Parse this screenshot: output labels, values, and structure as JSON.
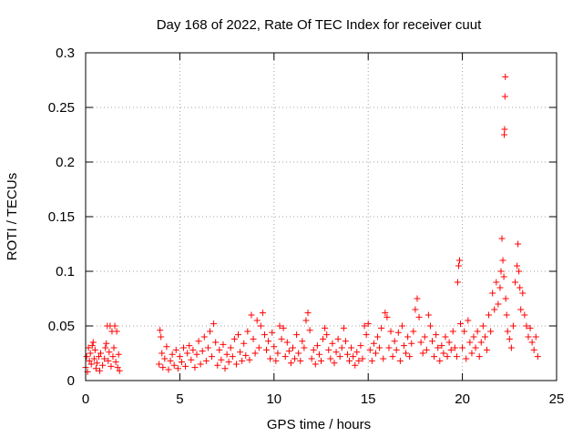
{
  "chart_data": {
    "type": "scatter",
    "title": "Day 168 of 2022, Rate Of TEC Index for receiver cuut",
    "xlabel": "GPS time / hours",
    "ylabel": "ROTI / TECUs",
    "xlim": [
      0,
      25
    ],
    "ylim": [
      0,
      0.3
    ],
    "x_ticks": [
      0,
      5,
      10,
      15,
      20,
      25
    ],
    "x_tick_labels": [
      "0",
      "5",
      "10",
      "15",
      "20",
      "25"
    ],
    "y_ticks": [
      0,
      0.05,
      0.1,
      0.15,
      0.2,
      0.25,
      0.3
    ],
    "y_tick_labels": [
      "0",
      "0.05",
      "0.1",
      "0.15",
      "0.2",
      "0.25",
      "0.3"
    ],
    "grid": true,
    "marker": "+",
    "marker_color": "#ff0000",
    "series": [
      {
        "name": "ROTI",
        "points": [
          [
            0.0,
            0.012
          ],
          [
            0.05,
            0.022
          ],
          [
            0.1,
            0.008
          ],
          [
            0.15,
            0.03
          ],
          [
            0.2,
            0.018
          ],
          [
            0.25,
            0.025
          ],
          [
            0.3,
            0.015
          ],
          [
            0.35,
            0.032
          ],
          [
            0.4,
            0.035
          ],
          [
            0.45,
            0.02
          ],
          [
            0.5,
            0.028
          ],
          [
            0.55,
            0.011
          ],
          [
            0.6,
            0.016
          ],
          [
            0.7,
            0.022
          ],
          [
            0.75,
            0.009
          ],
          [
            0.8,
            0.025
          ],
          [
            0.9,
            0.014
          ],
          [
            1.0,
            0.02
          ],
          [
            1.05,
            0.03
          ],
          [
            1.1,
            0.034
          ],
          [
            1.15,
            0.05
          ],
          [
            1.2,
            0.018
          ],
          [
            1.25,
            0.026
          ],
          [
            1.3,
            0.05
          ],
          [
            1.35,
            0.013
          ],
          [
            1.4,
            0.045
          ],
          [
            1.45,
            0.022
          ],
          [
            1.5,
            0.03
          ],
          [
            1.55,
            0.05
          ],
          [
            1.6,
            0.017
          ],
          [
            1.65,
            0.045
          ],
          [
            1.7,
            0.012
          ],
          [
            1.75,
            0.024
          ],
          [
            1.8,
            0.009
          ],
          [
            3.9,
            0.015
          ],
          [
            3.95,
            0.046
          ],
          [
            4.0,
            0.04
          ],
          [
            4.05,
            0.025
          ],
          [
            4.1,
            0.012
          ],
          [
            4.2,
            0.02
          ],
          [
            4.3,
            0.031
          ],
          [
            4.4,
            0.01
          ],
          [
            4.5,
            0.018
          ],
          [
            4.6,
            0.024
          ],
          [
            4.7,
            0.014
          ],
          [
            4.8,
            0.028
          ],
          [
            4.9,
            0.011
          ],
          [
            5.0,
            0.022
          ],
          [
            5.1,
            0.017
          ],
          [
            5.2,
            0.03
          ],
          [
            5.3,
            0.013
          ],
          [
            5.4,
            0.025
          ],
          [
            5.5,
            0.032
          ],
          [
            5.6,
            0.019
          ],
          [
            5.7,
            0.028
          ],
          [
            5.8,
            0.012
          ],
          [
            5.9,
            0.024
          ],
          [
            6.0,
            0.036
          ],
          [
            6.1,
            0.015
          ],
          [
            6.2,
            0.027
          ],
          [
            6.3,
            0.04
          ],
          [
            6.4,
            0.018
          ],
          [
            6.5,
            0.03
          ],
          [
            6.6,
            0.045
          ],
          [
            6.7,
            0.022
          ],
          [
            6.8,
            0.052
          ],
          [
            6.9,
            0.035
          ],
          [
            7.0,
            0.014
          ],
          [
            7.1,
            0.028
          ],
          [
            7.2,
            0.019
          ],
          [
            7.3,
            0.033
          ],
          [
            7.4,
            0.011
          ],
          [
            7.5,
            0.024
          ],
          [
            7.6,
            0.017
          ],
          [
            7.7,
            0.03
          ],
          [
            7.8,
            0.022
          ],
          [
            7.9,
            0.038
          ],
          [
            8.0,
            0.015
          ],
          [
            8.1,
            0.042
          ],
          [
            8.2,
            0.026
          ],
          [
            8.3,
            0.018
          ],
          [
            8.4,
            0.034
          ],
          [
            8.5,
            0.023
          ],
          [
            8.6,
            0.045
          ],
          [
            8.7,
            0.019
          ],
          [
            8.8,
            0.06
          ],
          [
            8.9,
            0.038
          ],
          [
            9.0,
            0.025
          ],
          [
            9.1,
            0.055
          ],
          [
            9.2,
            0.03
          ],
          [
            9.3,
            0.05
          ],
          [
            9.4,
            0.062
          ],
          [
            9.5,
            0.042
          ],
          [
            9.6,
            0.028
          ],
          [
            9.7,
            0.036
          ],
          [
            9.8,
            0.02
          ],
          [
            9.9,
            0.044
          ],
          [
            10.0,
            0.031
          ],
          [
            10.1,
            0.018
          ],
          [
            10.2,
            0.025
          ],
          [
            10.3,
            0.05
          ],
          [
            10.4,
            0.038
          ],
          [
            10.5,
            0.048
          ],
          [
            10.6,
            0.022
          ],
          [
            10.7,
            0.035
          ],
          [
            10.8,
            0.027
          ],
          [
            10.9,
            0.016
          ],
          [
            11.0,
            0.03
          ],
          [
            11.1,
            0.02
          ],
          [
            11.2,
            0.042
          ],
          [
            11.3,
            0.025
          ],
          [
            11.4,
            0.018
          ],
          [
            11.5,
            0.036
          ],
          [
            11.6,
            0.03
          ],
          [
            11.7,
            0.055
          ],
          [
            11.8,
            0.062
          ],
          [
            11.9,
            0.046
          ],
          [
            12.0,
            0.02
          ],
          [
            12.1,
            0.028
          ],
          [
            12.2,
            0.015
          ],
          [
            12.3,
            0.032
          ],
          [
            12.4,
            0.024
          ],
          [
            12.5,
            0.018
          ],
          [
            12.6,
            0.038
          ],
          [
            12.7,
            0.048
          ],
          [
            12.8,
            0.042
          ],
          [
            12.9,
            0.028
          ],
          [
            13.0,
            0.02
          ],
          [
            13.1,
            0.034
          ],
          [
            13.2,
            0.016
          ],
          [
            13.3,
            0.026
          ],
          [
            13.4,
            0.038
          ],
          [
            13.5,
            0.022
          ],
          [
            13.6,
            0.03
          ],
          [
            13.7,
            0.048
          ],
          [
            13.8,
            0.036
          ],
          [
            13.9,
            0.024
          ],
          [
            14.0,
            0.018
          ],
          [
            14.1,
            0.03
          ],
          [
            14.2,
            0.022
          ],
          [
            14.3,
            0.014
          ],
          [
            14.4,
            0.026
          ],
          [
            14.5,
            0.018
          ],
          [
            14.6,
            0.032
          ],
          [
            14.7,
            0.02
          ],
          [
            14.8,
            0.05
          ],
          [
            14.9,
            0.042
          ],
          [
            15.0,
            0.052
          ],
          [
            15.1,
            0.028
          ],
          [
            15.2,
            0.018
          ],
          [
            15.3,
            0.034
          ],
          [
            15.4,
            0.025
          ],
          [
            15.5,
            0.04
          ],
          [
            15.6,
            0.03
          ],
          [
            15.7,
            0.048
          ],
          [
            15.8,
            0.02
          ],
          [
            15.9,
            0.062
          ],
          [
            16.0,
            0.058
          ],
          [
            16.1,
            0.03
          ],
          [
            16.2,
            0.045
          ],
          [
            16.3,
            0.022
          ],
          [
            16.4,
            0.036
          ],
          [
            16.5,
            0.028
          ],
          [
            16.6,
            0.044
          ],
          [
            16.7,
            0.018
          ],
          [
            16.8,
            0.05
          ],
          [
            16.9,
            0.032
          ],
          [
            17.0,
            0.025
          ],
          [
            17.1,
            0.04
          ],
          [
            17.2,
            0.022
          ],
          [
            17.3,
            0.034
          ],
          [
            17.4,
            0.045
          ],
          [
            17.5,
            0.065
          ],
          [
            17.6,
            0.075
          ],
          [
            17.7,
            0.058
          ],
          [
            17.8,
            0.035
          ],
          [
            17.9,
            0.025
          ],
          [
            18.0,
            0.04
          ],
          [
            18.1,
            0.028
          ],
          [
            18.2,
            0.06
          ],
          [
            18.3,
            0.05
          ],
          [
            18.4,
            0.036
          ],
          [
            18.5,
            0.022
          ],
          [
            18.6,
            0.042
          ],
          [
            18.7,
            0.03
          ],
          [
            18.8,
            0.018
          ],
          [
            18.9,
            0.032
          ],
          [
            19.0,
            0.025
          ],
          [
            19.1,
            0.04
          ],
          [
            19.2,
            0.022
          ],
          [
            19.3,
            0.035
          ],
          [
            19.4,
            0.028
          ],
          [
            19.5,
            0.045
          ],
          [
            19.6,
            0.03
          ],
          [
            19.7,
            0.022
          ],
          [
            19.75,
            0.09
          ],
          [
            19.8,
            0.105
          ],
          [
            19.85,
            0.11
          ],
          [
            19.9,
            0.052
          ],
          [
            20.0,
            0.03
          ],
          [
            20.1,
            0.045
          ],
          [
            20.2,
            0.02
          ],
          [
            20.3,
            0.055
          ],
          [
            20.4,
            0.035
          ],
          [
            20.5,
            0.025
          ],
          [
            20.6,
            0.04
          ],
          [
            20.7,
            0.03
          ],
          [
            20.8,
            0.045
          ],
          [
            20.9,
            0.022
          ],
          [
            21.0,
            0.035
          ],
          [
            21.1,
            0.05
          ],
          [
            21.2,
            0.04
          ],
          [
            21.3,
            0.028
          ],
          [
            21.4,
            0.06
          ],
          [
            21.5,
            0.045
          ],
          [
            21.6,
            0.08
          ],
          [
            21.7,
            0.065
          ],
          [
            21.8,
            0.09
          ],
          [
            21.9,
            0.07
          ],
          [
            22.0,
            0.085
          ],
          [
            22.05,
            0.1
          ],
          [
            22.1,
            0.13
          ],
          [
            22.15,
            0.11
          ],
          [
            22.2,
            0.095
          ],
          [
            22.22,
            0.225
          ],
          [
            22.24,
            0.23
          ],
          [
            22.26,
            0.26
          ],
          [
            22.28,
            0.278
          ],
          [
            22.3,
            0.075
          ],
          [
            22.35,
            0.06
          ],
          [
            22.4,
            0.045
          ],
          [
            22.5,
            0.038
          ],
          [
            22.6,
            0.03
          ],
          [
            22.7,
            0.05
          ],
          [
            22.8,
            0.09
          ],
          [
            22.9,
            0.105
          ],
          [
            22.95,
            0.125
          ],
          [
            23.0,
            0.1
          ],
          [
            23.05,
            0.085
          ],
          [
            23.1,
            0.065
          ],
          [
            23.2,
            0.08
          ],
          [
            23.3,
            0.06
          ],
          [
            23.4,
            0.05
          ],
          [
            23.5,
            0.04
          ],
          [
            23.6,
            0.048
          ],
          [
            23.7,
            0.035
          ],
          [
            23.8,
            0.028
          ],
          [
            23.9,
            0.04
          ],
          [
            24.0,
            0.022
          ]
        ]
      }
    ]
  }
}
